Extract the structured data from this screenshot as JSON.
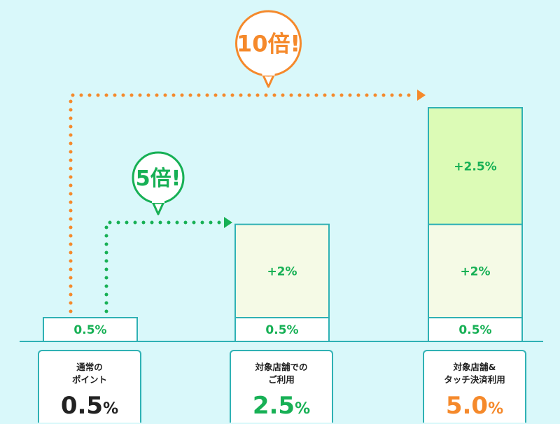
{
  "chart_data": {
    "type": "bar",
    "stacked": true,
    "categories": [
      "通常のポイント",
      "対象店舗でのご利用",
      "対象店舗&タッチ決済利用"
    ],
    "series": [
      {
        "values": [
          0.5,
          0.5,
          0.5
        ],
        "labels": [
          "0.5%",
          "0.5%",
          "0.5%"
        ]
      },
      {
        "values": [
          0,
          2,
          2
        ],
        "labels": [
          "",
          "+2%",
          "+2%"
        ]
      },
      {
        "values": [
          0,
          0,
          2.5
        ],
        "labels": [
          "",
          "",
          "+2.5%"
        ]
      }
    ],
    "unit": "%",
    "ylim": [
      0,
      5.0
    ],
    "annotations": [
      {
        "text": "5倍!",
        "from": 0,
        "to": 1,
        "color": "#17b055"
      },
      {
        "text": "10倍!",
        "from": 0,
        "to": 2,
        "color": "#f5892b"
      }
    ],
    "colors": {
      "background": "#d9f8fa",
      "base_fill": "#ffffff",
      "plus2_fill": "#f5fae6",
      "plus25_fill": "#dcfbb6",
      "outline": "#2fb1b4",
      "green": "#17b055",
      "orange": "#f5892b"
    }
  },
  "cards": [
    {
      "desc": "通常の\nポイント",
      "rate_num": "0.5",
      "rate_pct": "%",
      "color": "#222222"
    },
    {
      "desc": "対象店舗での\nご利用",
      "rate_num": "2.5",
      "rate_pct": "%",
      "color": "#17b055"
    },
    {
      "desc": "対象店舗&\nタッチ決済利用",
      "rate_num": "5.0",
      "rate_pct": "%",
      "color": "#f5892b"
    }
  ]
}
